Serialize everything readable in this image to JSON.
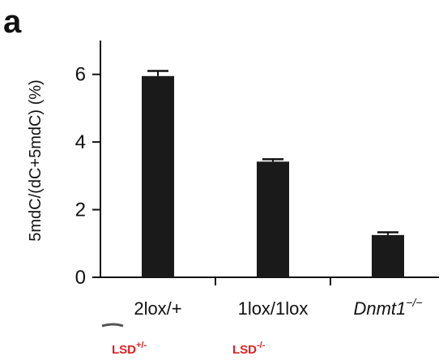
{
  "panel_letter": "a",
  "chart_data": {
    "type": "bar",
    "categories": [
      {
        "text": "2lox/+",
        "italic_part": "",
        "sup": ""
      },
      {
        "text": "1lox/1lox",
        "italic_part": "",
        "sup": ""
      },
      {
        "text": "",
        "italic_part": "Dnmt1",
        "sup": "−/−"
      }
    ],
    "values": [
      5.95,
      3.42,
      1.25
    ],
    "errors": [
      0.15,
      0.07,
      0.08
    ],
    "ylabel": "5mdC/(dC+5mdC) (%)",
    "ylim": [
      0,
      7
    ],
    "yticks": [
      0,
      2,
      4,
      6
    ],
    "bar_color": "#1a1a1a",
    "grid": false
  },
  "annotations": [
    {
      "base": "LSD",
      "sup": "+/-"
    },
    {
      "base": "LSD",
      "sup": "-/-"
    }
  ]
}
